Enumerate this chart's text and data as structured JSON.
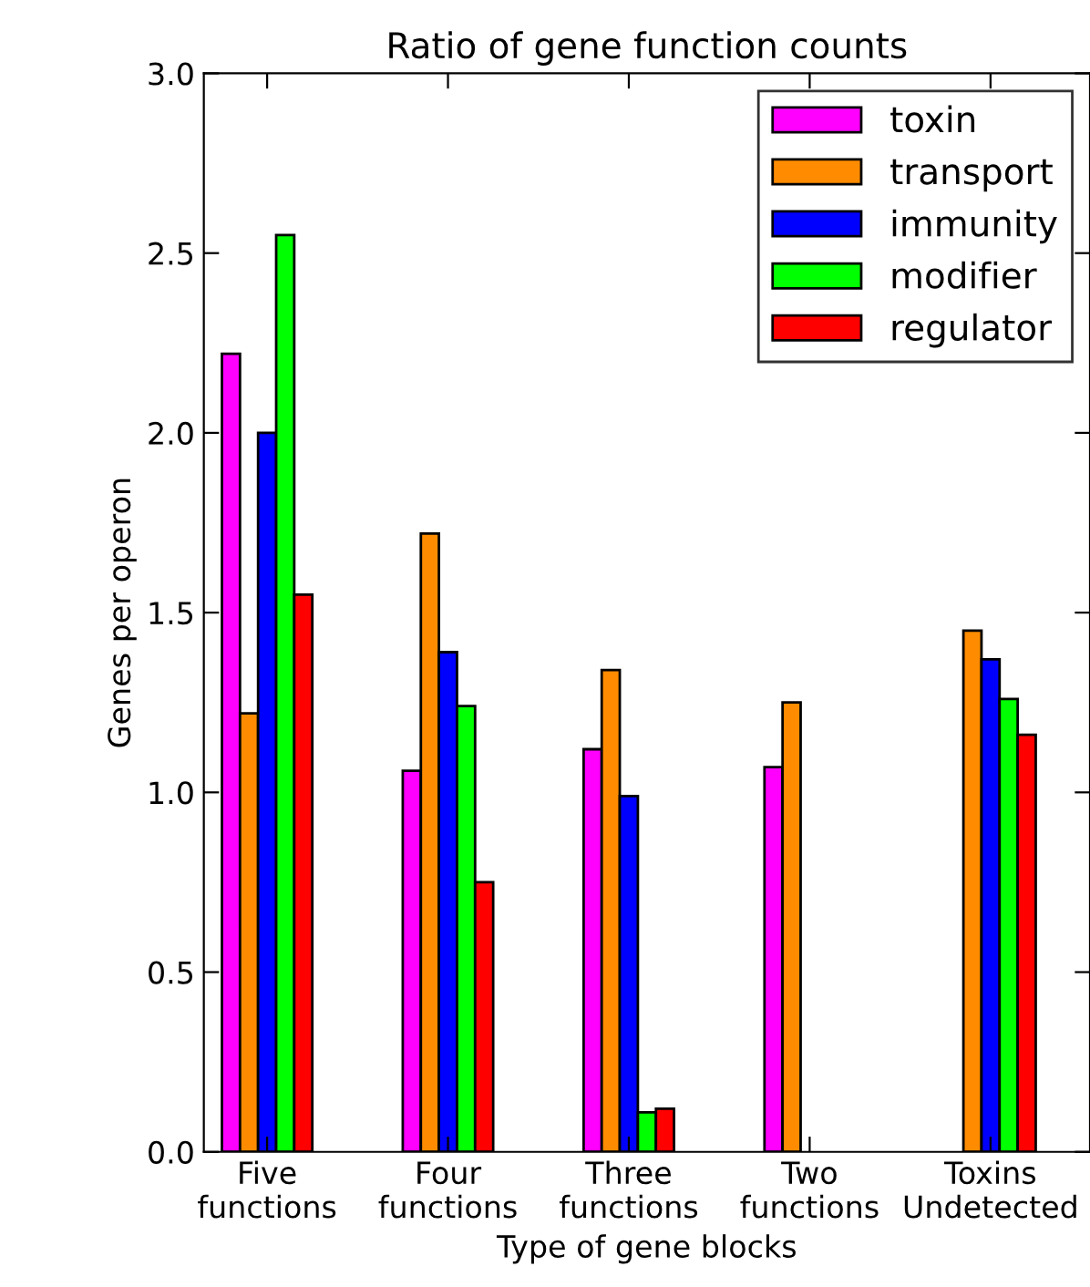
{
  "chart_data": {
    "type": "bar",
    "title": "Ratio of gene function counts",
    "xlabel": "Type of gene blocks",
    "ylabel": "Genes per operon",
    "categories": [
      "Five\nfunctions",
      "Four\nfunctions",
      "Three\nfunctions",
      "Two\nfunctions",
      "Toxins\nUndetected"
    ],
    "series": [
      {
        "name": "toxin",
        "color": "#ff00ff",
        "values": [
          2.22,
          1.06,
          1.12,
          1.07,
          null
        ]
      },
      {
        "name": "transport",
        "color": "#ff8c00",
        "values": [
          1.22,
          1.72,
          1.34,
          1.25,
          1.45
        ]
      },
      {
        "name": "immunity",
        "color": "#0000ff",
        "values": [
          2.0,
          1.39,
          0.99,
          null,
          1.37
        ]
      },
      {
        "name": "modifier",
        "color": "#00ff00",
        "values": [
          2.55,
          1.24,
          0.11,
          null,
          1.26
        ]
      },
      {
        "name": "regulator",
        "color": "#ff0000",
        "values": [
          1.55,
          0.75,
          0.12,
          null,
          1.16
        ]
      }
    ],
    "ylim": [
      0,
      3.0
    ],
    "yticks": [
      {
        "value": 0,
        "label": "0.0"
      },
      0.5,
      {
        "value": 1,
        "label": "1.0"
      },
      1.5,
      {
        "value": 2,
        "label": "2.0"
      },
      2.5,
      {
        "value": 3,
        "label": "3.0"
      }
    ],
    "legend": "top right",
    "grid": false
  }
}
